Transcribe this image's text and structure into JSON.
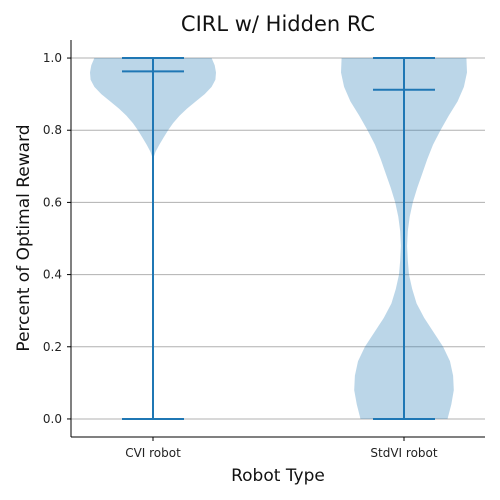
{
  "chart_data": {
    "type": "violin",
    "title": "CIRL w/ Hidden RC",
    "xlabel": "Robot Type",
    "ylabel": "Percent of Optimal Reward",
    "categories": [
      "CVI robot",
      "StdVI robot"
    ],
    "ylim": [
      -0.05,
      1.05
    ],
    "yticks": [
      "0.0",
      "0.2",
      "0.4",
      "0.6",
      "0.8",
      "1.0"
    ],
    "grid": "y",
    "colors": {
      "violin_fill": "#1f77b4",
      "violin_line": "#1f77b4",
      "grid": "#b0b0b0"
    },
    "series": [
      {
        "category": "CVI robot",
        "min": 0.0,
        "max": 1.0,
        "median": 0.963,
        "density_profile": [
          [
            0.0,
            0.0
          ],
          [
            0.06,
            0.0
          ],
          [
            0.12,
            0.0
          ],
          [
            0.18,
            0.0
          ],
          [
            0.22,
            0.0
          ],
          [
            0.24,
            0.0
          ],
          [
            0.3,
            0.0
          ],
          [
            0.4,
            0.0
          ],
          [
            0.5,
            0.0
          ],
          [
            0.6,
            0.0
          ],
          [
            0.65,
            0.0
          ],
          [
            0.7,
            0.0
          ],
          [
            0.72,
            0.0
          ],
          [
            0.74,
            0.04
          ],
          [
            0.76,
            0.1
          ],
          [
            0.78,
            0.17
          ],
          [
            0.8,
            0.24
          ],
          [
            0.82,
            0.32
          ],
          [
            0.84,
            0.42
          ],
          [
            0.86,
            0.54
          ],
          [
            0.88,
            0.68
          ],
          [
            0.9,
            0.82
          ],
          [
            0.92,
            0.93
          ],
          [
            0.94,
            0.99
          ],
          [
            0.96,
            1.0
          ],
          [
            0.98,
            0.98
          ],
          [
            1.0,
            0.93
          ]
        ]
      },
      {
        "category": "StdVI robot",
        "min": 0.0,
        "max": 1.0,
        "median": 0.912,
        "density_profile": [
          [
            0.0,
            0.69
          ],
          [
            0.04,
            0.75
          ],
          [
            0.08,
            0.79
          ],
          [
            0.12,
            0.78
          ],
          [
            0.16,
            0.73
          ],
          [
            0.2,
            0.62
          ],
          [
            0.24,
            0.47
          ],
          [
            0.28,
            0.32
          ],
          [
            0.32,
            0.2
          ],
          [
            0.36,
            0.13
          ],
          [
            0.4,
            0.08
          ],
          [
            0.44,
            0.06
          ],
          [
            0.48,
            0.05
          ],
          [
            0.52,
            0.06
          ],
          [
            0.56,
            0.09
          ],
          [
            0.6,
            0.14
          ],
          [
            0.64,
            0.21
          ],
          [
            0.68,
            0.29
          ],
          [
            0.72,
            0.37
          ],
          [
            0.76,
            0.46
          ],
          [
            0.8,
            0.58
          ],
          [
            0.84,
            0.71
          ],
          [
            0.88,
            0.85
          ],
          [
            0.92,
            0.95
          ],
          [
            0.96,
            1.0
          ],
          [
            1.0,
            0.99
          ]
        ]
      }
    ]
  }
}
